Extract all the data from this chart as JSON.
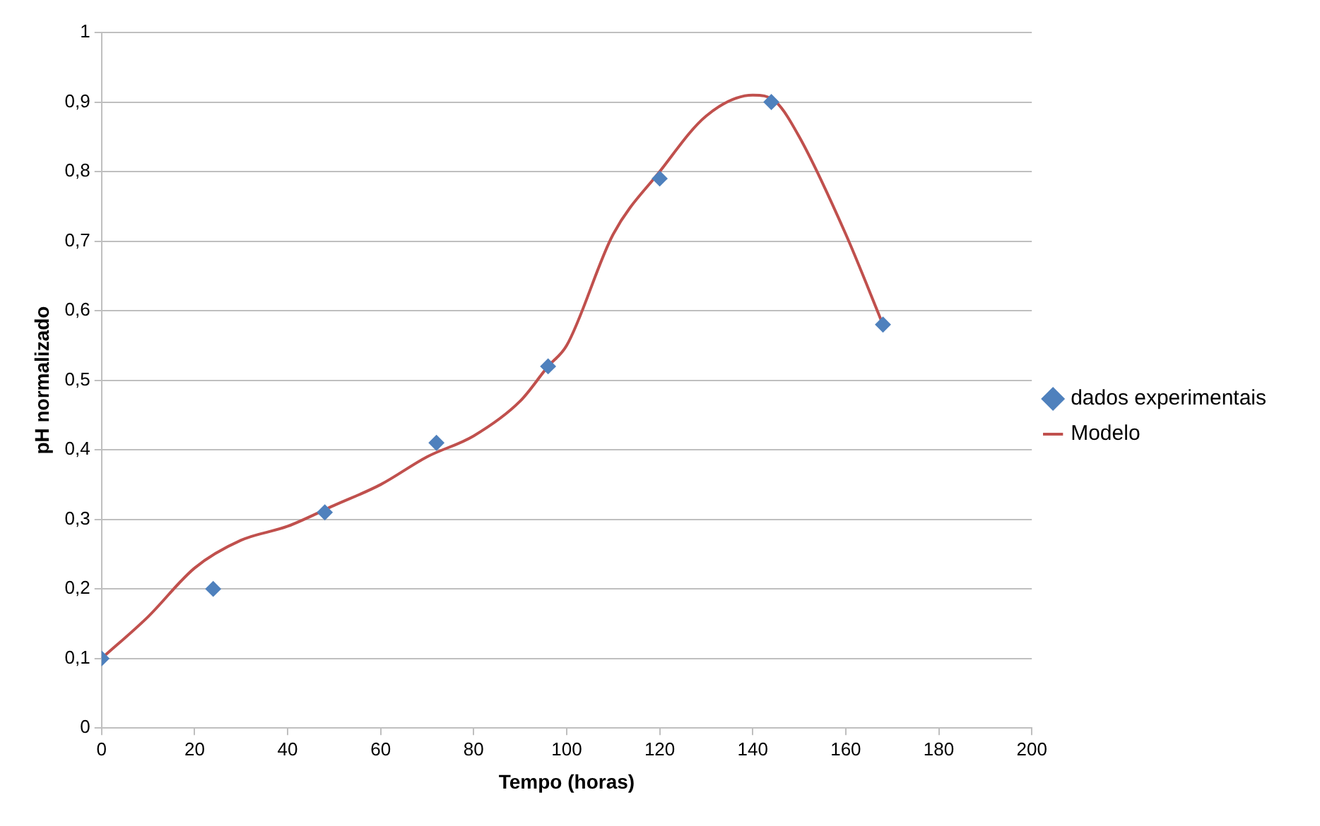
{
  "chart_data": {
    "type": "scatter",
    "xlabel": "Tempo (horas)",
    "ylabel": "pH normalizado",
    "xlim": [
      0,
      200
    ],
    "xticks": [
      0,
      20,
      40,
      60,
      80,
      100,
      120,
      140,
      160,
      180,
      200
    ],
    "ylim": [
      0,
      1
    ],
    "yticks": [
      0,
      {
        "value": 0.1,
        "label": "0,1"
      },
      {
        "value": 0.2,
        "label": "0,2"
      },
      {
        "value": 0.3,
        "label": "0,3"
      },
      {
        "value": 0.4,
        "label": "0,4"
      },
      {
        "value": 0.5,
        "label": "0,5"
      },
      {
        "value": 0.6,
        "label": "0,6"
      },
      {
        "value": 0.7,
        "label": "0,7"
      },
      {
        "value": 0.8,
        "label": "0,8"
      },
      {
        "value": 0.9,
        "label": "0,9"
      },
      1
    ],
    "grid": "y",
    "legend": "right",
    "series": [
      {
        "name": "dados experimentais",
        "marker": "diamond",
        "color": "#4f81bd",
        "x": [
          0,
          24,
          48,
          72,
          96,
          120,
          144,
          168
        ],
        "values": [
          0.1,
          0.2,
          0.31,
          0.41,
          0.52,
          0.79,
          0.9,
          0.58
        ]
      },
      {
        "name": "Modelo",
        "type": "line",
        "marker": "none",
        "line_style": "solid",
        "color": "#c0504d",
        "x": [
          0,
          10,
          20,
          30,
          40,
          50,
          60,
          70,
          80,
          90,
          96,
          100,
          110,
          120,
          130,
          140,
          145,
          150,
          160,
          168
        ],
        "values": [
          0.1,
          0.16,
          0.23,
          0.27,
          0.29,
          0.32,
          0.35,
          0.39,
          0.42,
          0.47,
          0.52,
          0.55,
          0.71,
          0.8,
          0.88,
          0.91,
          0.9,
          0.85,
          0.71,
          0.58
        ]
      }
    ]
  }
}
